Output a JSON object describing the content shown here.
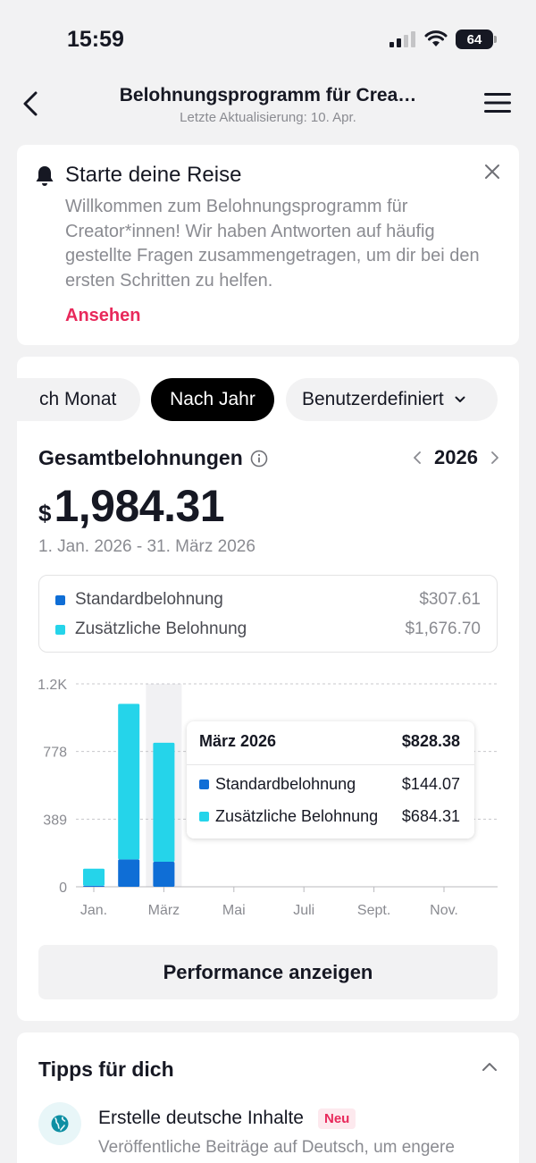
{
  "status_bar": {
    "time": "15:59",
    "battery": "64"
  },
  "nav": {
    "title": "Belohnungsprogramm für Crea…",
    "subtitle": "Letzte Aktualisierung: 10. Apr."
  },
  "intro": {
    "title": "Starte deine Reise",
    "text": "Willkommen zum Belohnungsprogramm für Creator*innen! Wir haben Antworten auf häufig gestellte Fragen zusammengetragen, um dir bei den ersten Schritten zu helfen.",
    "link": "Ansehen"
  },
  "filters": {
    "month": "ch Monat",
    "year": "Nach Jahr",
    "custom": "Benutzerdefiniert",
    "selected": "year"
  },
  "summary": {
    "label": "Gesamtbelohnungen",
    "year": "2026",
    "currency": "$",
    "amount": "1,984.31",
    "range": "1. Jan. 2026 - 31. März 2026"
  },
  "legend": [
    {
      "label": "Standardbelohnung",
      "value": "$307.61",
      "color": "#0f6ed6"
    },
    {
      "label": "Zusätzliche Belohnung",
      "value": "$1,676.70",
      "color": "#25d4ea"
    }
  ],
  "chart_data": {
    "type": "bar",
    "stacked": true,
    "x": [
      "Jan.",
      "Feb.",
      "März",
      "Apr.",
      "Mai",
      "Juni",
      "Juli",
      "Aug.",
      "Sept.",
      "Okt.",
      "Nov.",
      "Dez."
    ],
    "x_tick_labels": [
      "Jan.",
      "März",
      "Mai",
      "Juli",
      "Sept.",
      "Nov."
    ],
    "y_tick_labels": [
      "1.2K",
      "778",
      "389",
      "0"
    ],
    "ylim": [
      0,
      1167
    ],
    "highlight_index": 2,
    "series": [
      {
        "name": "Standardbelohnung",
        "color": "#0f6ed6",
        "values": [
          6,
          157.54,
          144.07,
          0,
          0,
          0,
          0,
          0,
          0,
          0,
          0,
          0
        ]
      },
      {
        "name": "Zusätzliche Belohnung",
        "color": "#25d4ea",
        "values": [
          98,
          894.39,
          684.31,
          0,
          0,
          0,
          0,
          0,
          0,
          0,
          0,
          0
        ]
      }
    ],
    "grid": true
  },
  "tooltip": {
    "title": "März 2026",
    "total": "$828.38",
    "rows": [
      {
        "label": "Standardbelohnung",
        "value": "$144.07"
      },
      {
        "label": "Zusätzliche Belohnung",
        "value": "$684.31"
      }
    ]
  },
  "performance_button": "Performance anzeigen",
  "tips": {
    "title": "Tipps für dich",
    "item_title": "Erstelle deutsche Inhalte",
    "badge": "Neu",
    "item_text": "Veröffentliche Beiträge auf Deutsch, um engere"
  }
}
